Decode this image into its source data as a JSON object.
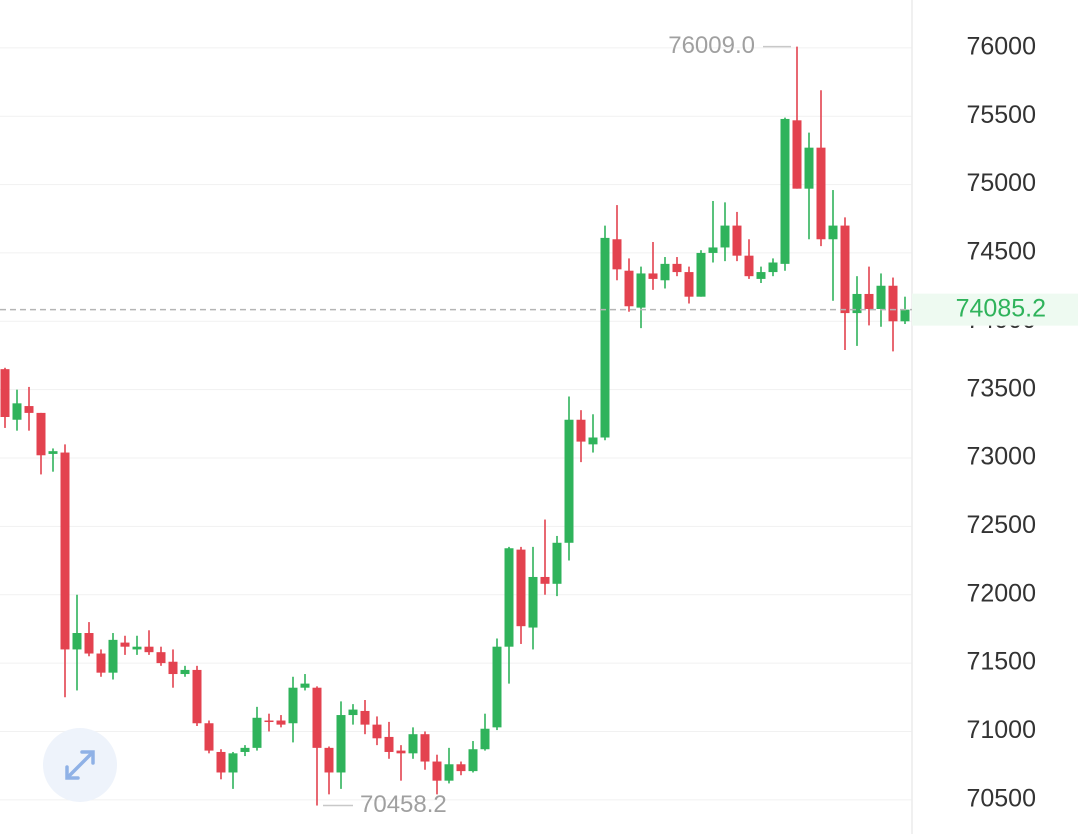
{
  "chart_data": {
    "type": "candlestick",
    "open": [
      73650,
      73280,
      73380,
      73330,
      73030,
      73040,
      71600,
      71720,
      71570,
      71430,
      71650,
      71600,
      71620,
      71580,
      71510,
      71420,
      71450,
      71060,
      70850,
      70700,
      70850,
      70880,
      71080,
      71080,
      71060,
      71320,
      71320,
      70880,
      70700,
      71120,
      71150,
      71050,
      70960,
      70860,
      70840,
      70980,
      70780,
      70640,
      70760,
      70710,
      70870,
      71030,
      71620,
      72330,
      71760,
      72130,
      72080,
      72380,
      73280,
      73100,
      73150,
      74600,
      74370,
      74100,
      74350,
      74300,
      74420,
      74360,
      74180,
      74500,
      74540,
      74700,
      74480,
      74310,
      74360,
      74420,
      75470,
      74970,
      75270,
      74600,
      74700,
      74060,
      74200,
      74090,
      74260,
      74000
    ],
    "high": [
      73660,
      73500,
      73520,
      73330,
      73070,
      73100,
      72000,
      71800,
      71600,
      71720,
      71700,
      71700,
      71740,
      71620,
      71600,
      71480,
      71480,
      71080,
      70870,
      70850,
      70900,
      71180,
      71130,
      71120,
      71400,
      71420,
      71330,
      70890,
      71220,
      71200,
      71230,
      71110,
      71070,
      70900,
      71030,
      71000,
      70830,
      70880,
      70780,
      70930,
      71130,
      71680,
      72350,
      72350,
      72350,
      72550,
      72430,
      73450,
      73350,
      73320,
      74700,
      74850,
      74460,
      74400,
      74580,
      74470,
      74470,
      74400,
      74520,
      74880,
      74870,
      74800,
      74600,
      74400,
      74460,
      75490,
      76009,
      75380,
      75690,
      74960,
      74760,
      74330,
      74400,
      74350,
      74320,
      74180
    ],
    "low": [
      73220,
      73200,
      73200,
      72880,
      72900,
      71250,
      71300,
      71550,
      71400,
      71380,
      71560,
      71560,
      71560,
      71480,
      71320,
      71400,
      71040,
      70840,
      70650,
      70580,
      70820,
      70860,
      71000,
      71030,
      70920,
      71300,
      70458.2,
      70540,
      70580,
      71050,
      70980,
      70900,
      70800,
      70640,
      70800,
      70720,
      70540,
      70620,
      70680,
      70700,
      70860,
      71010,
      71350,
      71640,
      71600,
      72000,
      71990,
      72250,
      72970,
      73040,
      73130,
      74300,
      74070,
      73950,
      74230,
      74240,
      74330,
      74130,
      74180,
      74430,
      74440,
      74440,
      74310,
      74280,
      74330,
      74370,
      74970,
      74600,
      74550,
      74150,
      73790,
      73820,
      73970,
      73960,
      73780,
      73980
    ],
    "close": [
      73300,
      73400,
      73330,
      73020,
      73050,
      71600,
      71720,
      71570,
      71430,
      71670,
      71620,
      71620,
      71580,
      71500,
      71420,
      71450,
      71060,
      70860,
      70700,
      70840,
      70880,
      71100,
      71070,
      71050,
      71320,
      71350,
      70880,
      70700,
      71120,
      71160,
      71050,
      70950,
      70850,
      70840,
      70980,
      70780,
      70640,
      70760,
      70710,
      70870,
      71020,
      71620,
      72340,
      71770,
      72130,
      72080,
      72380,
      73280,
      73120,
      73150,
      74610,
      74380,
      74110,
      74350,
      74310,
      74420,
      74360,
      74180,
      74500,
      74540,
      74700,
      74480,
      74330,
      74360,
      74430,
      75480,
      74970,
      75270,
      74600,
      74700,
      74060,
      74200,
      74090,
      74260,
      74000,
      74085.2
    ],
    "up_color": "#2fb35b",
    "down_color": "#e3424f",
    "ylim": [
      70250,
      76350
    ],
    "yticks": [
      70500,
      71000,
      71500,
      72000,
      72500,
      73000,
      73500,
      74000,
      74500,
      75000,
      75500,
      76000
    ],
    "grid": true,
    "high_marker": {
      "value": 76009,
      "label": "76009.0"
    },
    "low_marker": 70458.2,
    "last_price": 74085.2
  }
}
